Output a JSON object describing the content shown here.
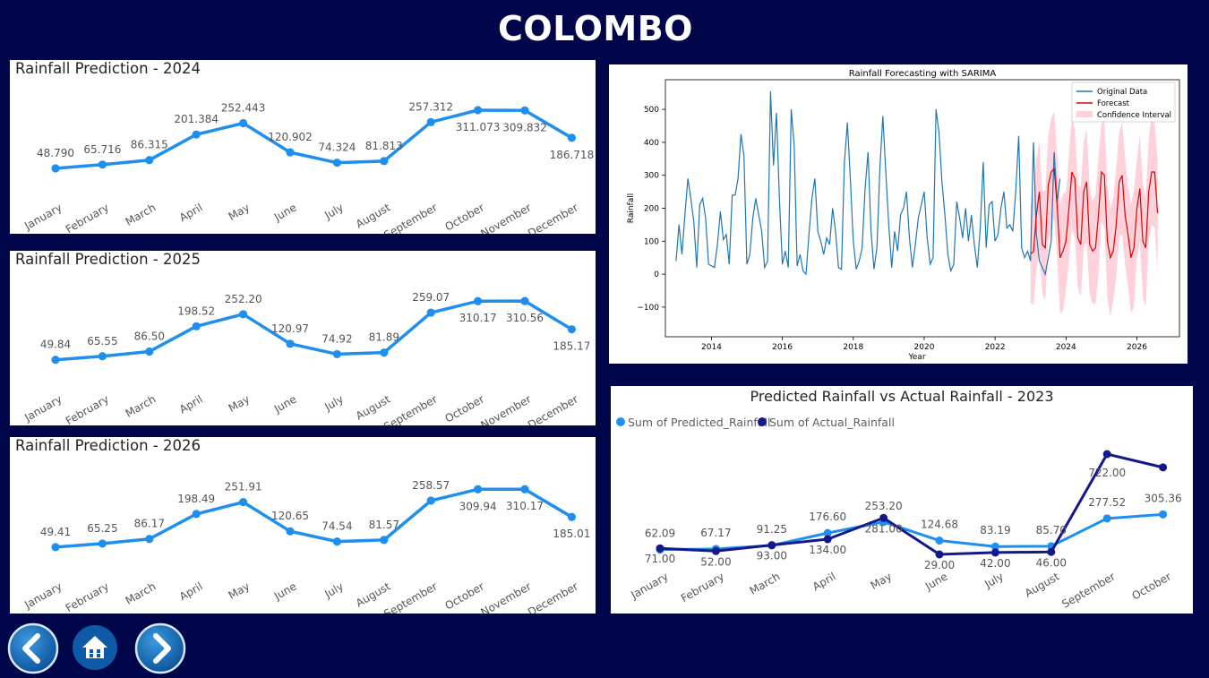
{
  "page": {
    "title": "COLOMBO"
  },
  "colors": {
    "background": "#01054a",
    "line": "#1e8fef",
    "actual": "#14198a",
    "forecast": "#e00000",
    "original": "#1f77b4",
    "ci": "#ffd1db"
  },
  "panels": {
    "p2024": {
      "title": "Rainfall Prediction - 2024"
    },
    "p2025": {
      "title": "Rainfall Prediction - 2025"
    },
    "p2026": {
      "title": "Rainfall Prediction - 2026"
    },
    "sarima": {
      "title": "Rainfall Forecasting with SARIMA"
    },
    "compare": {
      "title": "Predicted Rainfall vs Actual Rainfall - 2023"
    }
  },
  "nav": {
    "back_icon": "chevron-left-icon",
    "home_icon": "home-icon",
    "forward_icon": "chevron-right-icon"
  },
  "chart_data": [
    {
      "type": "line",
      "title": "Rainfall Prediction - 2024",
      "categories": [
        "January",
        "February",
        "March",
        "April",
        "May",
        "June",
        "July",
        "August",
        "September",
        "October",
        "November",
        "December"
      ],
      "values": [
        48.79,
        65.716,
        86.315,
        201.384,
        252.443,
        120.902,
        74.324,
        81.813,
        257.312,
        311.073,
        309.832,
        186.718
      ],
      "labels": [
        "48.790",
        "65.716",
        "86.315",
        "201.384",
        "252.443",
        "120.902",
        "74.324",
        "81.813",
        "257.312",
        "311.073",
        "309.832",
        "186.718"
      ],
      "color": "#1e8fef"
    },
    {
      "type": "line",
      "title": "Rainfall Prediction - 2025",
      "categories": [
        "January",
        "February",
        "March",
        "April",
        "May",
        "June",
        "July",
        "August",
        "September",
        "October",
        "November",
        "December"
      ],
      "values": [
        49.84,
        65.55,
        86.5,
        198.52,
        252.2,
        120.97,
        74.92,
        81.89,
        259.07,
        310.17,
        310.56,
        185.17
      ],
      "labels": [
        "49.84",
        "65.55",
        "86.50",
        "198.52",
        "252.20",
        "120.97",
        "74.92",
        "81.89",
        "259.07",
        "310.17",
        "310.56",
        "185.17"
      ],
      "color": "#1e8fef"
    },
    {
      "type": "line",
      "title": "Rainfall Prediction - 2026",
      "categories": [
        "January",
        "February",
        "March",
        "April",
        "May",
        "June",
        "July",
        "August",
        "September",
        "October",
        "November",
        "December"
      ],
      "values": [
        49.41,
        65.25,
        86.17,
        198.49,
        251.91,
        120.65,
        74.54,
        81.57,
        258.57,
        309.94,
        310.17,
        185.01
      ],
      "labels": [
        "49.41",
        "65.25",
        "86.17",
        "198.49",
        "251.91",
        "120.65",
        "74.54",
        "81.57",
        "258.57",
        "309.94",
        "310.17",
        "185.01"
      ],
      "color": "#1e8fef"
    },
    {
      "type": "line",
      "title": "Rainfall Forecasting with SARIMA",
      "xlabel": "Year",
      "ylabel": "Rainfall",
      "xlim": [
        2012.7,
        2027.2
      ],
      "ylim": [
        -190,
        590
      ],
      "xticks": [
        2014,
        2016,
        2018,
        2020,
        2022,
        2024,
        2026
      ],
      "yticks": [
        -100,
        0,
        100,
        200,
        300,
        400,
        500
      ],
      "legend": [
        "Original Data",
        "Forecast",
        "Confidence Interval"
      ],
      "legend_position": "top-right",
      "original_start": 2013.0,
      "original_step": 0.08333,
      "original": [
        40,
        150,
        60,
        180,
        290,
        230,
        160,
        20,
        210,
        230,
        170,
        30,
        25,
        20,
        90,
        190,
        105,
        120,
        30,
        240,
        240,
        290,
        425,
        360,
        30,
        60,
        170,
        230,
        180,
        130,
        20,
        40,
        555,
        330,
        490,
        230,
        30,
        70,
        20,
        500,
        390,
        25,
        60,
        10,
        0,
        120,
        230,
        290,
        130,
        100,
        60,
        110,
        90,
        200,
        130,
        20,
        15,
        340,
        460,
        290,
        100,
        15,
        40,
        80,
        260,
        370,
        130,
        15,
        80,
        320,
        480,
        310,
        150,
        20,
        130,
        70,
        180,
        200,
        250,
        110,
        20,
        90,
        170,
        210,
        250,
        110,
        30,
        50,
        500,
        430,
        280,
        180,
        60,
        10,
        30,
        220,
        170,
        110,
        200,
        100,
        180,
        90,
        20,
        140,
        340,
        80,
        210,
        220,
        100,
        120,
        200,
        250,
        140,
        150,
        130,
        250,
        420,
        80,
        50,
        70,
        40,
        400,
        120,
        40,
        20,
        0,
        50,
        100,
        370,
        220,
        290
      ],
      "forecast_start": 2023.0,
      "forecast_step": 0.08333,
      "forecast": [
        62,
        68,
        180,
        250,
        90,
        80,
        270,
        310,
        320,
        210,
        50,
        70,
        100,
        200,
        310,
        290,
        110,
        90,
        250,
        280,
        90,
        70,
        80,
        180,
        310,
        300,
        100,
        50,
        70,
        150,
        280,
        300,
        180,
        120,
        50,
        80,
        200,
        260,
        100,
        80,
        250,
        310,
        310,
        185
      ],
      "ci_halfwidth": 150
    },
    {
      "type": "line",
      "title": "Predicted Rainfall vs Actual Rainfall - 2023",
      "legend_position": "top-left",
      "categories": [
        "January",
        "February",
        "March",
        "April",
        "May",
        "June",
        "July",
        "August",
        "September",
        "October"
      ],
      "series": [
        {
          "name": "Sum of Predicted_Rainfall",
          "values": [
            62.09,
            67.17,
            91.25,
            176.6,
            253.2,
            124.68,
            83.19,
            85.7,
            277.52,
            305.36
          ],
          "labels": [
            "62.09",
            "67.17",
            "91.25",
            "176.60",
            "253.20",
            "124.68",
            "83.19",
            "85.70",
            "277.52",
            "305.36"
          ],
          "color": "#1e8fef"
        },
        {
          "name": "Sum of Actual_Rainfall",
          "values": [
            71.0,
            52.0,
            93.0,
            134.0,
            281.0,
            29.0,
            42.0,
            46.0,
            722.0,
            630.0
          ],
          "labels": [
            "71.00",
            "52.00",
            "93.00",
            "134.00",
            "281.00",
            "29.00",
            "42.00",
            "46.00",
            "722.00",
            ""
          ],
          "color": "#14198a"
        }
      ]
    }
  ]
}
